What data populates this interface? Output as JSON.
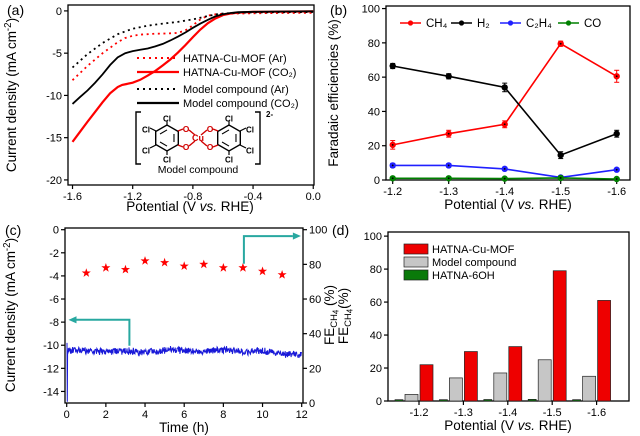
{
  "figure": {
    "background": "#ffffff"
  },
  "chart_data": [
    {
      "id": "a",
      "tag": "(a)",
      "type": "line",
      "xlabel": [
        {
          "t": "Potential (V "
        },
        {
          "t": "vs.",
          "i": true
        },
        {
          "t": " RHE)"
        }
      ],
      "ylabel": [
        {
          "t": "Current density (mA cm"
        },
        {
          "t": "-2",
          "sup": true
        },
        {
          "t": ")"
        }
      ],
      "xlim": [
        -1.63,
        0.005
      ],
      "ylim": [
        -20.6,
        0.7
      ],
      "xticks": [
        {
          "v": -1.6,
          "l": "-1.6"
        },
        {
          "v": -1.2,
          "l": "-1.2"
        },
        {
          "v": -0.8,
          "l": "-0.8"
        },
        {
          "v": -0.4,
          "l": "-0.4"
        },
        {
          "v": 0.0,
          "l": "0.0"
        }
      ],
      "yticks": [
        {
          "v": 0,
          "l": "0"
        },
        {
          "v": -5,
          "l": "-5"
        },
        {
          "v": -10,
          "l": "-10"
        },
        {
          "v": -15,
          "l": "-15"
        },
        {
          "v": -20,
          "l": "-20"
        }
      ],
      "series": [
        {
          "name": "HATNA-Cu-MOF (Ar)",
          "color": "#ff0000",
          "style": "dotted",
          "width": 1.8,
          "points": [
            [
              -1.6,
              -8.2
            ],
            [
              -1.5,
              -6.5
            ],
            [
              -1.4,
              -5.0
            ],
            [
              -1.3,
              -3.7
            ],
            [
              -1.25,
              -3.2
            ],
            [
              -1.2,
              -2.95
            ],
            [
              -1.15,
              -2.8
            ],
            [
              -1.1,
              -2.75
            ],
            [
              -1.05,
              -2.7
            ],
            [
              -1.0,
              -2.68
            ],
            [
              -0.95,
              -2.65
            ],
            [
              -0.9,
              -2.6
            ],
            [
              -0.85,
              -2.3
            ],
            [
              -0.8,
              -1.7
            ],
            [
              -0.75,
              -1.0
            ],
            [
              -0.7,
              -0.55
            ],
            [
              -0.65,
              -0.4
            ],
            [
              -0.6,
              -0.35
            ],
            [
              -0.5,
              -0.3
            ],
            [
              -0.4,
              -0.28
            ],
            [
              -0.3,
              -0.26
            ],
            [
              -0.2,
              -0.25
            ],
            [
              -0.1,
              -0.24
            ],
            [
              0,
              -0.23
            ]
          ]
        },
        {
          "name": "HATNA-Cu-MOF (CO₂)",
          "color": "#ff0000",
          "style": "solid",
          "width": 2.2,
          "points": [
            [
              -1.6,
              -15.5
            ],
            [
              -1.55,
              -14.3
            ],
            [
              -1.5,
              -13.1
            ],
            [
              -1.45,
              -11.95
            ],
            [
              -1.4,
              -10.8
            ],
            [
              -1.35,
              -9.75
            ],
            [
              -1.3,
              -9.0
            ],
            [
              -1.27,
              -8.75
            ],
            [
              -1.24,
              -8.65
            ],
            [
              -1.2,
              -8.5
            ],
            [
              -1.15,
              -8.15
            ],
            [
              -1.1,
              -7.65
            ],
            [
              -1.05,
              -7.1
            ],
            [
              -1.0,
              -6.45
            ],
            [
              -0.95,
              -5.75
            ],
            [
              -0.9,
              -4.95
            ],
            [
              -0.85,
              -4.05
            ],
            [
              -0.8,
              -3.1
            ],
            [
              -0.75,
              -2.2
            ],
            [
              -0.7,
              -1.45
            ],
            [
              -0.65,
              -0.9
            ],
            [
              -0.6,
              -0.5
            ],
            [
              -0.55,
              -0.3
            ],
            [
              -0.5,
              -0.2
            ],
            [
              -0.4,
              -0.12
            ],
            [
              -0.3,
              -0.1
            ],
            [
              -0.2,
              -0.08
            ],
            [
              -0.1,
              -0.07
            ],
            [
              0,
              -0.06
            ]
          ]
        },
        {
          "name": "Model compound (Ar)",
          "color": "#000000",
          "style": "dotted",
          "width": 1.8,
          "points": [
            [
              -1.6,
              -6.7
            ],
            [
              -1.5,
              -5.1
            ],
            [
              -1.4,
              -3.8
            ],
            [
              -1.3,
              -2.75
            ],
            [
              -1.2,
              -2.1
            ],
            [
              -1.1,
              -1.75
            ],
            [
              -1.0,
              -1.5
            ],
            [
              -0.9,
              -1.3
            ],
            [
              -0.85,
              -1.15
            ],
            [
              -0.8,
              -1.0
            ],
            [
              -0.75,
              -0.8
            ],
            [
              -0.7,
              -0.6
            ],
            [
              -0.65,
              -0.42
            ],
            [
              -0.6,
              -0.3
            ],
            [
              -0.5,
              -0.22
            ],
            [
              -0.4,
              -0.18
            ],
            [
              -0.3,
              -0.16
            ],
            [
              -0.2,
              -0.15
            ],
            [
              -0.1,
              -0.14
            ],
            [
              0,
              -0.13
            ]
          ]
        },
        {
          "name": "Model compound (CO₂)",
          "color": "#000000",
          "style": "solid",
          "width": 1.8,
          "points": [
            [
              -1.6,
              -11.0
            ],
            [
              -1.55,
              -10.2
            ],
            [
              -1.5,
              -9.4
            ],
            [
              -1.45,
              -8.5
            ],
            [
              -1.4,
              -7.5
            ],
            [
              -1.35,
              -6.4
            ],
            [
              -1.3,
              -5.5
            ],
            [
              -1.25,
              -5.0
            ],
            [
              -1.2,
              -4.75
            ],
            [
              -1.15,
              -4.6
            ],
            [
              -1.1,
              -4.45
            ],
            [
              -1.05,
              -4.2
            ],
            [
              -1.0,
              -3.9
            ],
            [
              -0.95,
              -3.5
            ],
            [
              -0.9,
              -3.05
            ],
            [
              -0.85,
              -2.55
            ],
            [
              -0.8,
              -2.0
            ],
            [
              -0.75,
              -1.5
            ],
            [
              -0.7,
              -1.05
            ],
            [
              -0.65,
              -0.65
            ],
            [
              -0.6,
              -0.4
            ],
            [
              -0.55,
              -0.25
            ],
            [
              -0.5,
              -0.15
            ],
            [
              -0.4,
              -0.1
            ],
            [
              -0.3,
              -0.08
            ],
            [
              -0.2,
              -0.07
            ],
            [
              -0.1,
              -0.06
            ],
            [
              0,
              -0.05
            ]
          ]
        }
      ],
      "molecule": {
        "charge": "2-",
        "metal": "Cu",
        "oxygen": "O",
        "chlorine": "Cl",
        "caption": "Model compound"
      }
    },
    {
      "id": "b",
      "tag": "(b)",
      "type": "line-markers",
      "xlabel": [
        {
          "t": "Potential (V "
        },
        {
          "t": "vs.",
          "i": true
        },
        {
          "t": " RHE)"
        }
      ],
      "ylabel": [
        {
          "t": "Faradaic efficiencies (%)"
        }
      ],
      "categories": [
        "-1.2",
        "-1.3",
        "-1.4",
        "-1.5",
        "-1.6"
      ],
      "ylim": [
        0,
        101.5
      ],
      "yticks": [
        0,
        20,
        40,
        60,
        80,
        100
      ],
      "legend_position": "top-inside",
      "series": [
        {
          "name": "CH₄",
          "color": "#ff0000",
          "values": [
            20.5,
            27,
            32.5,
            79.5,
            60.5
          ],
          "errors": [
            2.5,
            2,
            2,
            1.5,
            3.5
          ]
        },
        {
          "name": "H₂",
          "color": "#000000",
          "values": [
            66.5,
            60.5,
            54,
            14.5,
            27
          ],
          "errors": [
            1.5,
            1.5,
            2.5,
            2,
            2
          ]
        },
        {
          "name": "C₂H₄",
          "color": "#2020ff",
          "values": [
            8.5,
            8.5,
            6.5,
            1.5,
            6
          ],
          "errors": [
            1.2,
            1,
            1,
            0.6,
            0.8
          ]
        },
        {
          "name": "CO",
          "color": "#008000",
          "values": [
            1,
            1,
            0.8,
            1.2,
            0.6
          ],
          "errors": [
            0.3,
            0.3,
            0.3,
            0.4,
            0.2
          ]
        }
      ]
    },
    {
      "id": "c",
      "tag": "(c)",
      "type": "stability-dual-axis",
      "xlabel": [
        {
          "t": "Time (h)"
        }
      ],
      "ylabel_left": [
        {
          "t": "Current density (mA cm"
        },
        {
          "t": "-2",
          "sup": true
        },
        {
          "t": ")"
        }
      ],
      "ylabel_right": [
        {
          "t": "FE"
        },
        {
          "t": "CH",
          "sub": true
        },
        {
          "t": "4",
          "sub2": true
        },
        {
          "t": " (%)"
        }
      ],
      "xlim": [
        0,
        12
      ],
      "xticks": [
        0,
        2,
        4,
        6,
        8,
        10,
        12
      ],
      "ylim_left": [
        -15,
        0.15
      ],
      "yticks_left": [
        0,
        -2,
        -4,
        -6,
        -8,
        -10,
        -12,
        -14
      ],
      "ylim_right": [
        0,
        100
      ],
      "yticks_right": [
        0,
        20,
        40,
        60,
        80,
        100
      ],
      "current_trace": {
        "color": "#1818d8",
        "baseline": [
          -10.45,
          -10.5,
          -10.5,
          -10.55,
          -10.5,
          -10.45,
          -10.45,
          -10.5,
          -10.45,
          -10.5,
          -10.55,
          -10.7,
          -10.8
        ],
        "noise_amp": 0.3,
        "transient": [
          [
            0.015,
            -9.8
          ],
          [
            0.03,
            -14.9
          ],
          [
            0.045,
            -10.6
          ]
        ]
      },
      "fe_stars": {
        "color": "#ff0000",
        "t": [
          1,
          2,
          3,
          4,
          5,
          6,
          7,
          8,
          9,
          10,
          11
        ],
        "fe": [
          75,
          78,
          77,
          82,
          81,
          79,
          80,
          78,
          78,
          76,
          74
        ]
      },
      "arrows": {
        "color": "#28a8a0",
        "items": [
          {
            "x": 3.2,
            "y1": -10.05,
            "y2": -7.8,
            "x2": 0.5,
            "dir": "left"
          },
          {
            "x": 9.05,
            "y1": -2.95,
            "y2": -0.55,
            "x2": 11.55,
            "dir": "right"
          }
        ]
      }
    },
    {
      "id": "d",
      "tag": "(d)",
      "type": "bar",
      "xlabel": [
        {
          "t": "Potential (V "
        },
        {
          "t": "vs.",
          "i": true
        },
        {
          "t": " RHE)"
        }
      ],
      "ylabel": [
        {
          "t": "FE"
        },
        {
          "t": "CH",
          "sub": true
        },
        {
          "t": "4",
          "sub2": true
        },
        {
          "t": "(%)"
        }
      ],
      "categories": [
        "-1.2",
        "-1.3",
        "-1.4",
        "-1.5",
        "-1.6"
      ],
      "ylim": [
        0,
        102.5
      ],
      "yticks": [
        0,
        20,
        40,
        60,
        80,
        100
      ],
      "series": [
        {
          "name": "HATNA-Cu-MOF",
          "color": "#ee0000",
          "values": [
            22,
            30,
            33,
            79,
            61
          ]
        },
        {
          "name": "Model compound",
          "color": "#c6c6c6",
          "values": [
            4,
            14,
            17,
            25,
            15
          ]
        },
        {
          "name": "HATNA-6OH",
          "color": "#0a7a0a",
          "values": [
            0.8,
            0.8,
            0.9,
            1.0,
            0.8
          ]
        }
      ],
      "draw_order": [
        "HATNA-6OH",
        "Model compound",
        "HATNA-Cu-MOF"
      ]
    }
  ]
}
